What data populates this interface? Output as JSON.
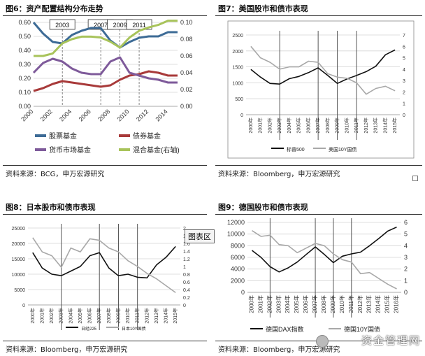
{
  "page": {
    "watermark": "资金管理网",
    "popup_label": "图表区"
  },
  "panels": [
    {
      "title": "图6：资产配置结构分布走势",
      "source": "资料来源：BCG，申万宏源研究"
    },
    {
      "title": "图7：美国股市和债市表现",
      "source": "资料来源：Bloomberg，申万宏源研究"
    },
    {
      "title": "图8：日本股市和债市表现",
      "source": "资料来源：Bloomberg，申万宏源研究"
    },
    {
      "title": "图9：德国股市和债市表现",
      "source": "资料来源：Bloomberg，申万宏源研究"
    }
  ],
  "colors": {
    "stock_fund": "#3d6b96",
    "bond_fund": "#a83a3a",
    "money_fund": "#7e5a9a",
    "mixed_fund": "#a8c35a",
    "index_line": "#111111",
    "bond_yield_line": "#a8a8a8",
    "grid": "#d4d4d4",
    "vline": "#444444"
  },
  "chart_data": [
    {
      "type": "line",
      "title": "图6：资产配置结构分布走势",
      "x": [
        2000,
        2001,
        2002,
        2003,
        2004,
        2005,
        2006,
        2007,
        2008,
        2009,
        2010,
        2011,
        2012,
        2013,
        2014,
        2015
      ],
      "x_tick_labels": [
        "2000",
        "2002",
        "2004",
        "2006",
        "2008",
        "2010",
        "2012",
        "2014"
      ],
      "ylim_left": [
        0,
        0.6
      ],
      "y_ticks_left": [
        "0.00",
        "0.10",
        "0.20",
        "0.30",
        "0.40",
        "0.50",
        "0.60"
      ],
      "ylim_right": [
        0,
        0.1
      ],
      "y_ticks_right": [
        "0.00",
        "0.02",
        "0.04",
        "0.06",
        "0.08",
        "0.10"
      ],
      "annotations": [
        "2003",
        "2007",
        "2009",
        "2011"
      ],
      "annotation_years": [
        2003,
        2007,
        2009,
        2011
      ],
      "series": [
        {
          "name": "股票基金",
          "axis": "left",
          "color": "#3d6b96",
          "values": [
            0.6,
            0.52,
            0.46,
            0.45,
            0.51,
            0.54,
            0.56,
            0.56,
            0.47,
            0.42,
            0.46,
            0.49,
            0.5,
            0.5,
            0.53,
            0.53
          ]
        },
        {
          "name": "债券基金",
          "axis": "left",
          "color": "#a83a3a",
          "values": [
            0.11,
            0.13,
            0.16,
            0.18,
            0.17,
            0.16,
            0.15,
            0.14,
            0.15,
            0.19,
            0.22,
            0.23,
            0.25,
            0.24,
            0.22,
            0.22
          ]
        },
        {
          "name": "货币市场基金",
          "axis": "left",
          "color": "#7e5a9a",
          "values": [
            0.24,
            0.31,
            0.34,
            0.32,
            0.27,
            0.24,
            0.23,
            0.23,
            0.32,
            0.35,
            0.24,
            0.22,
            0.2,
            0.19,
            0.17,
            0.17
          ]
        },
        {
          "name": "混合基金(右轴)",
          "axis": "right",
          "color": "#a8c35a",
          "values": [
            0.06,
            0.06,
            0.063,
            0.075,
            0.08,
            0.083,
            0.083,
            0.082,
            0.077,
            0.07,
            0.082,
            0.09,
            0.094,
            0.097,
            0.102,
            0.102
          ]
        }
      ],
      "legend": "bottom"
    },
    {
      "type": "line",
      "title": "图7：美国股市和债市表现",
      "x_tick_labels": [
        "2000年",
        "2001年",
        "2002年",
        "2003年",
        "2004年",
        "2005年",
        "2006年",
        "2007年",
        "2008年",
        "2009年",
        "2010年",
        "2011年",
        "2012年",
        "2013年",
        "2014年",
        "2015年"
      ],
      "ylim_left": [
        0,
        2500
      ],
      "y_ticks_left": [
        "0",
        "500",
        "1000",
        "1500",
        "2000",
        "2500"
      ],
      "ylim_right": [
        0,
        7
      ],
      "y_ticks_right": [
        "0",
        "1",
        "2",
        "3",
        "4",
        "5",
        "6",
        "7"
      ],
      "vertical_lines_at": [
        "2003年",
        "2007年",
        "2009年",
        "2011年"
      ],
      "series": [
        {
          "name": "标普500",
          "axis": "left",
          "color": "#111111",
          "values": [
            1420,
            1180,
            980,
            960,
            1130,
            1200,
            1320,
            1470,
            1230,
            980,
            1120,
            1230,
            1350,
            1520,
            1880,
            2030
          ]
        },
        {
          "name": "美国10Y国债",
          "axis": "right",
          "color": "#a8a8a8",
          "values": [
            6.0,
            5.0,
            4.6,
            4.0,
            4.2,
            4.2,
            4.7,
            4.6,
            3.6,
            3.3,
            3.2,
            2.8,
            1.8,
            2.3,
            2.5,
            2.1
          ]
        }
      ],
      "legend": "bottom"
    },
    {
      "type": "line",
      "title": "图8：日本股市和债市表现",
      "x_tick_labels": [
        "2000年",
        "2001年",
        "2002年",
        "2003年",
        "2004年",
        "2005年",
        "2006年",
        "2007年",
        "2008年",
        "2009年",
        "2010年",
        "2011年",
        "2012年",
        "2013年",
        "2014年",
        "2015年"
      ],
      "ylim_left": [
        0,
        25000
      ],
      "y_ticks_left": [
        "0",
        "5000",
        "10000",
        "15000",
        "20000",
        "25000"
      ],
      "ylim_right": [
        0,
        2
      ],
      "y_ticks_right": [
        "0",
        "0.2",
        "0.4",
        "0.6",
        "0.8",
        "1",
        "1.2",
        "1.4",
        "1.6",
        "1.8",
        "2"
      ],
      "vertical_lines_at": [
        "2003年",
        "2007年",
        "2009年",
        "2011年"
      ],
      "series": [
        {
          "name": "日经225",
          "axis": "left",
          "color": "#111111",
          "values": [
            17000,
            12000,
            10000,
            9500,
            11000,
            12500,
            16000,
            17000,
            12000,
            9500,
            10000,
            9000,
            8800,
            13000,
            15500,
            19000
          ]
        },
        {
          "name": "日本10Y国债",
          "axis": "right",
          "color": "#a8a8a8",
          "values": [
            1.75,
            1.38,
            1.28,
            0.98,
            1.48,
            1.38,
            1.72,
            1.68,
            1.48,
            1.38,
            1.15,
            1.0,
            0.82,
            0.68,
            0.5,
            0.32
          ]
        }
      ],
      "legend": "bottom"
    },
    {
      "type": "line",
      "title": "图9：德国股市和债市表现",
      "x_tick_labels": [
        "2000年",
        "2001年",
        "2002年",
        "2003年",
        "2004年",
        "2005年",
        "2006年",
        "2007年",
        "2008年",
        "2009年",
        "2010年",
        "2011年",
        "2012年",
        "2013年",
        "2014年",
        "2015年",
        "2016年"
      ],
      "ylim_left": [
        0,
        12000
      ],
      "y_ticks_left": [
        "0",
        "2000",
        "4000",
        "6000",
        "8000",
        "10000",
        "12000"
      ],
      "ylim_right": [
        0,
        6
      ],
      "y_ticks_right": [
        "0",
        "1",
        "2",
        "3",
        "4",
        "5",
        "6"
      ],
      "vertical_lines_at": [
        "2002年",
        "2007年",
        "2009年",
        "2011年"
      ],
      "series": [
        {
          "name": "德国DAX指数",
          "axis": "left",
          "color": "#111111",
          "values": [
            7200,
            6000,
            4400,
            3500,
            4200,
            5200,
            6500,
            7800,
            6500,
            5100,
            6200,
            6600,
            6900,
            8000,
            9200,
            10500,
            11200
          ]
        },
        {
          "name": "德国10Y国债",
          "axis": "right",
          "color": "#a8a8a8",
          "values": [
            5.3,
            4.8,
            4.9,
            4.1,
            4.0,
            3.4,
            3.8,
            4.2,
            4.0,
            3.3,
            2.8,
            2.6,
            1.6,
            1.7,
            1.2,
            0.7,
            0.3
          ]
        }
      ],
      "legend": "bottom"
    }
  ]
}
